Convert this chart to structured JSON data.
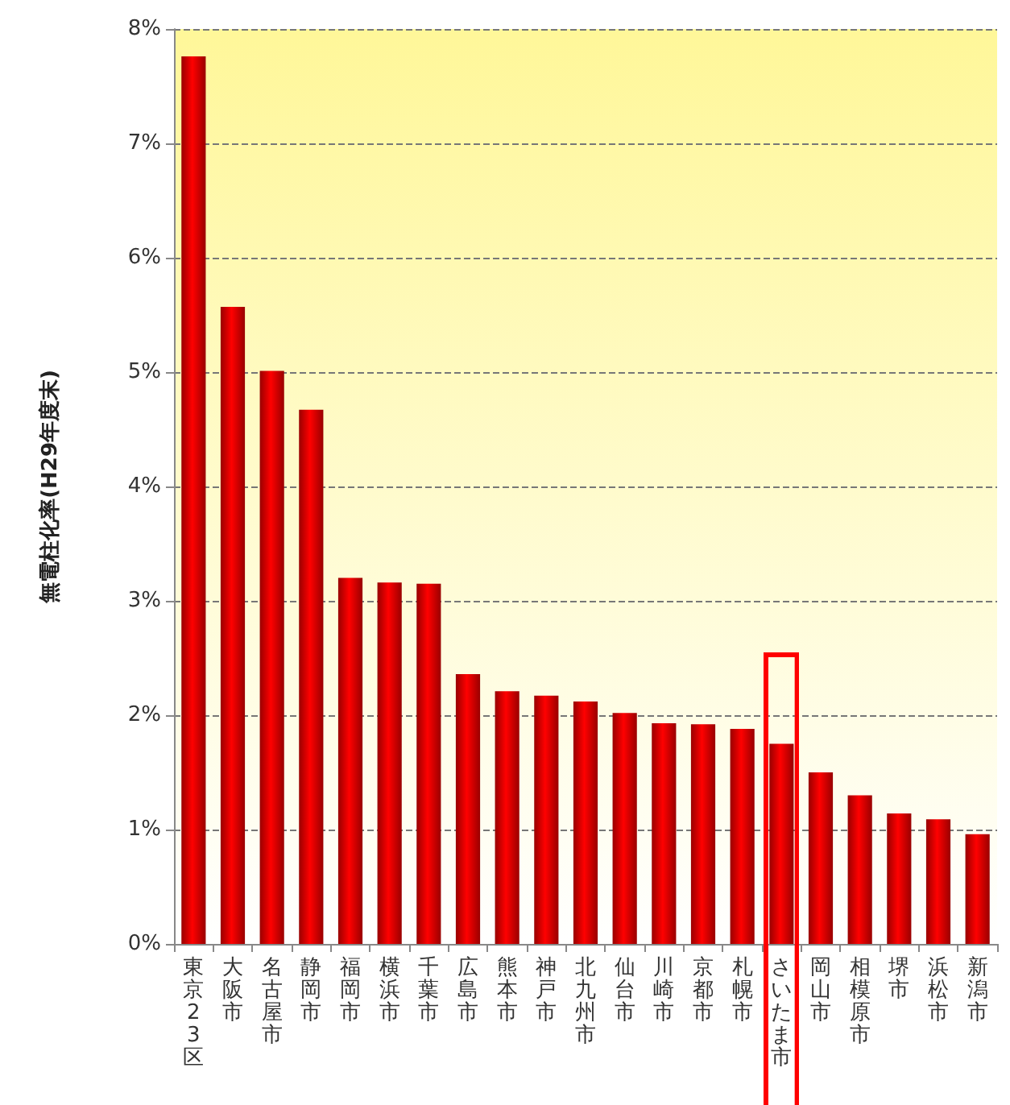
{
  "chart_data": {
    "type": "bar",
    "ylabel": "無電柱化率(H29年度末)",
    "categories": [
      "東京23区",
      "大阪市",
      "名古屋市",
      "静岡市",
      "福岡市",
      "横浜市",
      "千葉市",
      "広島市",
      "熊本市",
      "神戸市",
      "北九州市",
      "仙台市",
      "川崎市",
      "京都市",
      "札幌市",
      "さいたま市",
      "岡山市",
      "相模原市",
      "堺市",
      "浜松市",
      "新潟市"
    ],
    "values": [
      7.76,
      5.57,
      5.01,
      4.67,
      3.2,
      3.16,
      3.15,
      2.36,
      2.21,
      2.17,
      2.12,
      2.02,
      1.93,
      1.92,
      1.88,
      1.75,
      1.5,
      1.3,
      1.14,
      1.09,
      0.96
    ],
    "color": "#ff0000",
    "ylim": [
      0,
      8
    ],
    "yticks": [
      {
        "value": 0,
        "label": "0%"
      },
      {
        "value": 1,
        "label": "1%"
      },
      {
        "value": 2,
        "label": "2%"
      },
      {
        "value": 3,
        "label": "3%"
      },
      {
        "value": 4,
        "label": "4%"
      },
      {
        "value": 5,
        "label": "5%"
      },
      {
        "value": 6,
        "label": "6%"
      },
      {
        "value": 7,
        "label": "7%"
      },
      {
        "value": 8,
        "label": "8%"
      }
    ],
    "grid": "y"
  }
}
